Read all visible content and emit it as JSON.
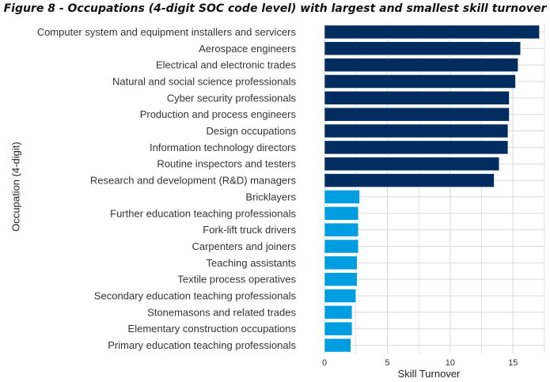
{
  "title": "Figure 8 - Occupations (4-digit SOC code level) with largest and smallest skill turnover",
  "chart_data": {
    "type": "bar",
    "orientation": "horizontal",
    "xlabel": "Skill Turnover",
    "ylabel": "Occupation (4-digit)",
    "xlim": [
      0,
      17.5
    ],
    "xticks": [
      0,
      5,
      10,
      15
    ],
    "grid": true,
    "categories": [
      "Computer system and equipment installers and servicers",
      "Aerospace engineers",
      "Electrical and electronic trades",
      "Natural and social science professionals",
      "Cyber security professionals",
      "Production and process engineers",
      "Design occupations",
      "Information technology directors",
      "Routine inspectors and testers",
      "Research and development (R&D) managers",
      "Bricklayers",
      "Further education teaching professionals",
      "Fork-lift truck drivers",
      "Carpenters and joiners",
      "Teaching assistants",
      "Textile process operatives",
      "Secondary education teaching professionals",
      "Stonemasons and related trades",
      "Elementary construction occupations",
      "Primary education teaching professionals"
    ],
    "values": [
      17.1,
      15.6,
      15.4,
      15.2,
      14.7,
      14.7,
      14.6,
      14.6,
      13.9,
      13.5,
      2.8,
      2.7,
      2.7,
      2.7,
      2.6,
      2.6,
      2.5,
      2.2,
      2.2,
      2.1
    ],
    "groups": [
      "largest",
      "largest",
      "largest",
      "largest",
      "largest",
      "largest",
      "largest",
      "largest",
      "largest",
      "largest",
      "smallest",
      "smallest",
      "smallest",
      "smallest",
      "smallest",
      "smallest",
      "smallest",
      "smallest",
      "smallest",
      "smallest"
    ],
    "colors": {
      "largest": "#002c5f",
      "smallest": "#009de0",
      "grid": "#d9d9d9",
      "background": "#ffffff"
    }
  }
}
